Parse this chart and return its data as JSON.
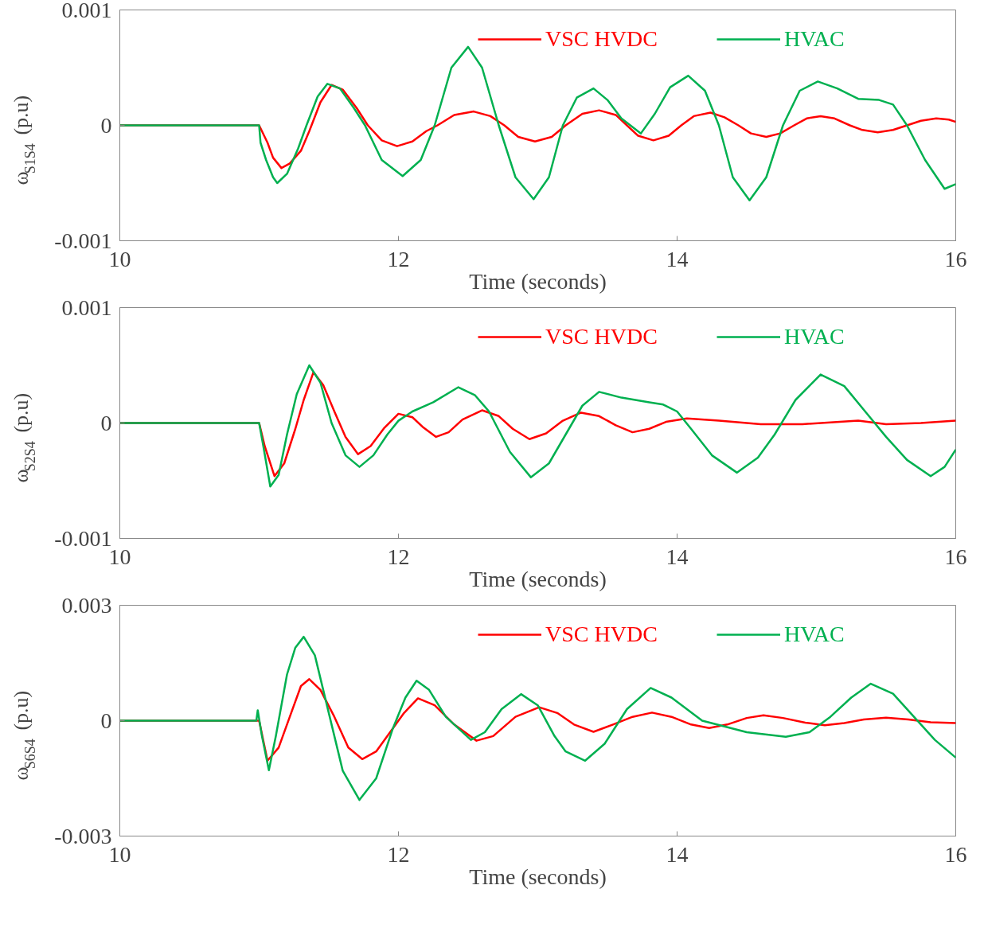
{
  "chart_data": [
    {
      "type": "line",
      "xlabel": "Time (seconds)",
      "ylabel": "ω$_{S1S4}$ (p.u)",
      "xlim": [
        10,
        16
      ],
      "xticks": [
        10,
        12,
        14,
        16
      ],
      "ylim": [
        -0.001,
        0.001
      ],
      "yticks": [
        -0.001,
        0,
        0.001
      ],
      "legend": "top right",
      "series": [
        {
          "name": "VSC HVDC",
          "color": "#ff0000",
          "x": [
            10,
            11.0,
            11.02,
            11.06,
            11.1,
            11.16,
            11.22,
            11.3,
            11.36,
            11.44,
            11.52,
            11.6,
            11.7,
            11.78,
            11.88,
            11.99,
            12.1,
            12.2,
            12.28,
            12.4,
            12.54,
            12.66,
            12.76,
            12.86,
            12.98,
            13.1,
            13.2,
            13.32,
            13.44,
            13.56,
            13.64,
            13.72,
            13.83,
            13.94,
            14.03,
            14.12,
            14.24,
            14.34,
            14.44,
            14.53,
            14.64,
            14.74,
            14.84,
            14.93,
            15.03,
            15.13,
            15.24,
            15.33,
            15.44,
            15.55,
            15.65,
            15.75,
            15.86,
            15.95,
            16.0
          ],
          "values": [
            0,
            0,
            -5e-05,
            -0.00015,
            -0.00028,
            -0.00037,
            -0.00033,
            -0.00022,
            -5e-05,
            0.0002,
            0.00035,
            0.00031,
            0.00015,
            0,
            -0.00013,
            -0.00018,
            -0.00014,
            -5e-05,
            0,
            9e-05,
            0.00012,
            8e-05,
            0,
            -0.0001,
            -0.00014,
            -0.0001,
            0,
            0.0001,
            0.00013,
            9e-05,
            0,
            -9e-05,
            -0.00013,
            -9e-05,
            0,
            8e-05,
            0.00011,
            7e-05,
            0,
            -7e-05,
            -0.0001,
            -7e-05,
            0,
            6e-05,
            8e-05,
            6e-05,
            0,
            -4e-05,
            -6e-05,
            -4e-05,
            0,
            4e-05,
            6e-05,
            5e-05,
            3e-05
          ]
        },
        {
          "name": "HVAC",
          "color": "#00b050",
          "x": [
            10,
            11.0,
            11.01,
            11.05,
            11.1,
            11.13,
            11.2,
            11.28,
            11.34,
            11.42,
            11.49,
            11.58,
            11.68,
            11.76,
            11.88,
            12.03,
            12.16,
            12.26,
            12.38,
            12.5,
            12.6,
            12.72,
            12.84,
            12.97,
            13.08,
            13.18,
            13.28,
            13.4,
            13.5,
            13.6,
            13.74,
            13.84,
            13.95,
            14.08,
            14.2,
            14.3,
            14.4,
            14.52,
            14.64,
            14.76,
            14.88,
            15.01,
            15.15,
            15.3,
            15.45,
            15.55,
            15.65,
            15.78,
            15.92,
            16.0
          ],
          "values": [
            0,
            0,
            -0.00015,
            -0.0003,
            -0.00045,
            -0.0005,
            -0.00042,
            -0.0002,
            0,
            0.00025,
            0.00036,
            0.00032,
            0.00015,
            0,
            -0.0003,
            -0.00044,
            -0.0003,
            0,
            0.0005,
            0.00068,
            0.0005,
            0,
            -0.00045,
            -0.00064,
            -0.00045,
            0,
            0.00024,
            0.00032,
            0.00022,
            6e-05,
            -7e-05,
            0.0001,
            0.00033,
            0.00043,
            0.0003,
            0,
            -0.00045,
            -0.00065,
            -0.00045,
            0,
            0.0003,
            0.00038,
            0.00032,
            0.00023,
            0.00022,
            0.00018,
            0,
            -0.0003,
            -0.00055,
            -0.00051
          ]
        }
      ]
    },
    {
      "type": "line",
      "xlabel": "Time (seconds)",
      "ylabel": "ω$_{S2S4}$ (p.u)",
      "xlim": [
        10,
        16
      ],
      "xticks": [
        10,
        12,
        14,
        16
      ],
      "ylim": [
        -0.001,
        0.001
      ],
      "yticks": [
        -0.001,
        0,
        0.001
      ],
      "legend": "top right",
      "series": [
        {
          "name": "VSC HVDC",
          "color": "#ff0000",
          "x": [
            10,
            11.0,
            11.04,
            11.11,
            11.18,
            11.26,
            11.32,
            11.39,
            11.46,
            11.54,
            11.62,
            11.71,
            11.8,
            11.9,
            12.0,
            12.1,
            12.18,
            12.27,
            12.36,
            12.46,
            12.6,
            12.72,
            12.82,
            12.94,
            13.06,
            13.18,
            13.31,
            13.44,
            13.56,
            13.68,
            13.8,
            13.92,
            14.07,
            14.3,
            14.6,
            14.9,
            15.3,
            15.5,
            15.75,
            16.0
          ],
          "values": [
            0,
            0,
            -0.0002,
            -0.00046,
            -0.00035,
            -5e-05,
            0.0002,
            0.00044,
            0.00033,
            0.0001,
            -0.00012,
            -0.00027,
            -0.0002,
            -4e-05,
            8e-05,
            5e-05,
            -4e-05,
            -0.00012,
            -8e-05,
            3e-05,
            0.00011,
            6e-05,
            -5e-05,
            -0.00014,
            -9e-05,
            2e-05,
            9e-05,
            6e-05,
            -2e-05,
            -8e-05,
            -5e-05,
            1e-05,
            4e-05,
            2e-05,
            -1e-05,
            -1e-05,
            2e-05,
            -1e-05,
            0,
            2e-05
          ]
        },
        {
          "name": "HVAC",
          "color": "#00b050",
          "x": [
            10,
            11.0,
            11.03,
            11.08,
            11.14,
            11.2,
            11.27,
            11.36,
            11.44,
            11.52,
            11.62,
            11.72,
            11.82,
            11.92,
            12.0,
            12.1,
            12.25,
            12.43,
            12.55,
            12.65,
            12.8,
            12.95,
            13.08,
            13.2,
            13.32,
            13.44,
            13.6,
            13.8,
            13.9,
            14.0,
            14.1,
            14.25,
            14.43,
            14.58,
            14.7,
            14.85,
            15.03,
            15.2,
            15.35,
            15.5,
            15.65,
            15.82,
            15.92,
            16.0
          ],
          "values": [
            0,
            0,
            -0.0002,
            -0.00055,
            -0.00045,
            -0.0001,
            0.00025,
            0.0005,
            0.00035,
            0.0,
            -0.00028,
            -0.00038,
            -0.00028,
            -0.0001,
            2e-05,
            0.0001,
            0.00018,
            0.00031,
            0.00024,
            0.0001,
            -0.00025,
            -0.00047,
            -0.00035,
            -0.0001,
            0.00015,
            0.00027,
            0.00022,
            0.00018,
            0.00016,
            0.0001,
            -5e-05,
            -0.00028,
            -0.00043,
            -0.0003,
            -0.0001,
            0.0002,
            0.00042,
            0.00032,
            0.0001,
            -0.00012,
            -0.00032,
            -0.00046,
            -0.00038,
            -0.00023
          ]
        }
      ]
    },
    {
      "type": "line",
      "xlabel": "Time (seconds)",
      "ylabel": "ω$_{S6S4}$ (p.u)",
      "xlim": [
        10,
        16
      ],
      "xticks": [
        10,
        12,
        14,
        16
      ],
      "ylim": [
        -0.003,
        0.003
      ],
      "yticks": [
        -0.003,
        0,
        0.003
      ],
      "legend": "top right",
      "series": [
        {
          "name": "VSC HVDC",
          "color": "#ff0000",
          "x": [
            10,
            11.0,
            11.06,
            11.14,
            11.22,
            11.3,
            11.36,
            11.44,
            11.54,
            11.64,
            11.74,
            11.84,
            11.94,
            12.04,
            12.14,
            12.26,
            12.4,
            12.56,
            12.68,
            12.84,
            13.01,
            13.14,
            13.26,
            13.4,
            13.54,
            13.68,
            13.82,
            13.96,
            14.1,
            14.23,
            14.36,
            14.5,
            14.62,
            14.76,
            14.92,
            15.06,
            15.2,
            15.34,
            15.5,
            15.66,
            15.82,
            16.0
          ],
          "values": [
            0,
            0,
            -0.00104,
            -0.0007,
            0.0001,
            0.0009,
            0.00108,
            0.0008,
            0.0001,
            -0.0007,
            -0.001,
            -0.0008,
            -0.0003,
            0.0002,
            0.00058,
            0.0004,
            -0.0001,
            -0.00052,
            -0.0004,
            0.0001,
            0.00035,
            0.0002,
            -0.0001,
            -0.00029,
            -0.0001,
            0.0001,
            0.00021,
            0.0001,
            -0.0001,
            -0.00019,
            -0.0001,
            7e-05,
            0.00014,
            7e-05,
            -5e-05,
            -0.00012,
            -6e-05,
            3e-05,
            8e-05,
            3e-05,
            -4e-05,
            -6e-05
          ]
        },
        {
          "name": "HVAC",
          "color": "#00b050",
          "x": [
            10,
            10.98,
            10.99,
            11.02,
            11.07,
            11.12,
            11.2,
            11.26,
            11.32,
            11.4,
            11.5,
            11.6,
            11.72,
            11.84,
            11.96,
            12.05,
            12.13,
            12.22,
            12.34,
            12.52,
            12.62,
            12.74,
            12.88,
            13.0,
            13.12,
            13.2,
            13.34,
            13.48,
            13.64,
            13.81,
            13.96,
            14.18,
            14.5,
            14.78,
            14.95,
            15.1,
            15.25,
            15.39,
            15.55,
            15.7,
            15.85,
            16.0
          ],
          "values": [
            0,
            0,
            0.00027,
            -0.0004,
            -0.00129,
            -0.0004,
            0.0012,
            0.0019,
            0.00218,
            0.0017,
            0.0002,
            -0.0013,
            -0.00206,
            -0.0015,
            -0.0002,
            0.0006,
            0.00104,
            0.0008,
            0.0001,
            -0.0005,
            -0.0003,
            0.0003,
            0.00069,
            0.0004,
            -0.0004,
            -0.0008,
            -0.00104,
            -0.0006,
            0.0003,
            0.00085,
            0.0006,
            0,
            -0.0003,
            -0.00042,
            -0.0003,
            0.0001,
            0.0006,
            0.00096,
            0.0007,
            0.0001,
            -0.0005,
            -0.00096
          ]
        }
      ]
    }
  ]
}
